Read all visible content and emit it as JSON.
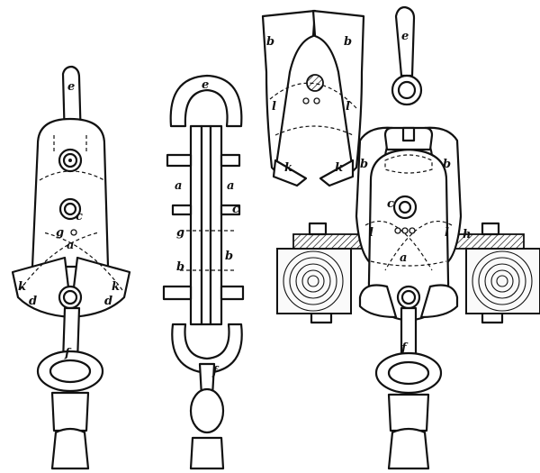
{
  "labels": {
    "e": "e",
    "f": "f",
    "a": "a",
    "b": "b",
    "c": "c",
    "d": "d",
    "g": "g",
    "h": "h",
    "k": "k",
    "l": "l"
  }
}
